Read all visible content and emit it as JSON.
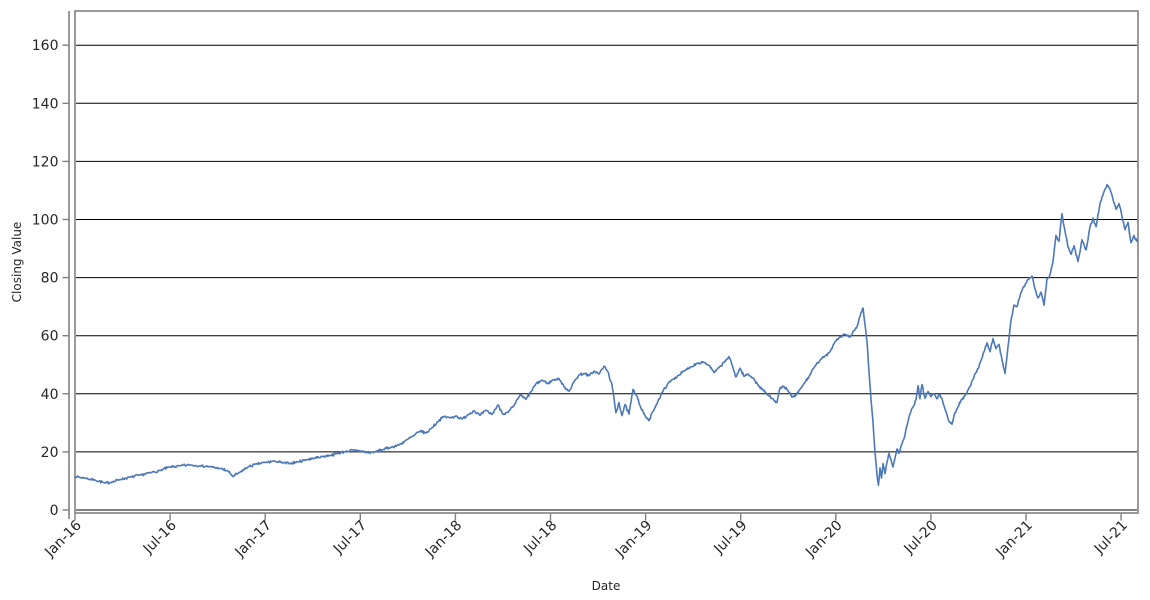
{
  "chart_data": {
    "type": "line",
    "title": "",
    "xlabel": "Date",
    "ylabel": "Closing Value",
    "x_axis": {
      "tick_labels": [
        "Jan-16",
        "Jul-16",
        "Jan-17",
        "Jul-17",
        "Jan-18",
        "Jul-18",
        "Jan-19",
        "Jul-19",
        "Jan-20",
        "Jul-20",
        "Jan-21",
        "Jul-21"
      ],
      "tick_months": [
        0,
        6,
        12,
        18,
        24,
        30,
        36,
        42,
        48,
        54,
        60,
        66
      ],
      "range_months": [
        0,
        67
      ]
    },
    "y_axis": {
      "tick_labels": [
        "0",
        "20",
        "40",
        "60",
        "80",
        "100",
        "120",
        "140",
        "160"
      ],
      "ticks": [
        0,
        20,
        40,
        60,
        80,
        100,
        120,
        140,
        160
      ],
      "range": [
        -1,
        172
      ]
    },
    "grid": {
      "horizontal": true,
      "vertical": false,
      "color": "#000000"
    },
    "legend": "none",
    "line": {
      "name": "Closing Value",
      "color": "#4c78b8",
      "width": 1.6
    },
    "frame_color": "#808080",
    "text_color": "#262626",
    "background": "#ffffff",
    "noise": {
      "seed": 7,
      "amp": 0.5,
      "step_months": 0.045
    },
    "series": [
      {
        "name": "Closing Value",
        "points": [
          [
            0,
            11.5
          ],
          [
            0.63,
            11
          ],
          [
            1.26,
            10.3
          ],
          [
            1.89,
            9.3
          ],
          [
            2.33,
            9.6
          ],
          [
            2.84,
            10.5
          ],
          [
            3.47,
            11.3
          ],
          [
            4.1,
            12
          ],
          [
            4.73,
            12.8
          ],
          [
            5.36,
            13.6
          ],
          [
            5.99,
            14.8
          ],
          [
            6.62,
            15.2
          ],
          [
            7.26,
            15.5
          ],
          [
            7.89,
            15.2
          ],
          [
            8.52,
            14.9
          ],
          [
            9.15,
            14.3
          ],
          [
            9.65,
            13.4
          ],
          [
            9.97,
            11.5
          ],
          [
            10.41,
            13
          ],
          [
            10.91,
            14.8
          ],
          [
            11.42,
            15.8
          ],
          [
            12.05,
            16.4
          ],
          [
            12.62,
            16.8
          ],
          [
            13.12,
            16.2
          ],
          [
            13.56,
            16
          ],
          [
            14.07,
            16.6
          ],
          [
            14.57,
            17.3
          ],
          [
            15.08,
            17.8
          ],
          [
            15.58,
            18.4
          ],
          [
            16.09,
            18.8
          ],
          [
            16.59,
            19.5
          ],
          [
            17.1,
            20.2
          ],
          [
            17.6,
            20.6
          ],
          [
            18.04,
            20.3
          ],
          [
            18.49,
            19.7
          ],
          [
            18.93,
            20
          ],
          [
            19.43,
            20.8
          ],
          [
            19.94,
            21.6
          ],
          [
            20.44,
            22.4
          ],
          [
            20.95,
            24.2
          ],
          [
            21.39,
            25.6
          ],
          [
            21.77,
            27.2
          ],
          [
            22.15,
            26.5
          ],
          [
            22.52,
            28.3
          ],
          [
            22.9,
            30.5
          ],
          [
            23.28,
            32.2
          ],
          [
            23.66,
            31.7
          ],
          [
            24.04,
            32.4
          ],
          [
            24.42,
            31.3
          ],
          [
            24.79,
            32.8
          ],
          [
            25.17,
            34.2
          ],
          [
            25.55,
            32.6
          ],
          [
            25.93,
            34.3
          ],
          [
            26.31,
            32.9
          ],
          [
            26.69,
            36.2
          ],
          [
            27,
            33
          ],
          [
            27.32,
            33.6
          ],
          [
            27.7,
            35.9
          ],
          [
            28.08,
            39.6
          ],
          [
            28.45,
            38.1
          ],
          [
            28.77,
            40.7
          ],
          [
            29.08,
            43.4
          ],
          [
            29.46,
            44.7
          ],
          [
            29.84,
            43.5
          ],
          [
            30.16,
            44.8
          ],
          [
            30.54,
            45.2
          ],
          [
            30.85,
            42.5
          ],
          [
            31.17,
            40.9
          ],
          [
            31.48,
            44.1
          ],
          [
            31.8,
            46.5
          ],
          [
            32.11,
            47
          ],
          [
            32.43,
            46.2
          ],
          [
            32.74,
            47.8
          ],
          [
            33.06,
            46.8
          ],
          [
            33.38,
            49.5
          ],
          [
            33.63,
            47.5
          ],
          [
            33.88,
            43
          ],
          [
            34.13,
            33.5
          ],
          [
            34.32,
            37
          ],
          [
            34.51,
            32.5
          ],
          [
            34.7,
            36.3
          ],
          [
            34.95,
            33
          ],
          [
            35.21,
            41.5
          ],
          [
            35.46,
            39.2
          ],
          [
            35.71,
            35
          ],
          [
            35.96,
            32.5
          ],
          [
            36.21,
            30.7
          ],
          [
            36.47,
            34
          ],
          [
            36.78,
            37.5
          ],
          [
            37.1,
            41
          ],
          [
            37.41,
            43.5
          ],
          [
            37.73,
            45
          ],
          [
            38.11,
            46.5
          ],
          [
            38.49,
            48
          ],
          [
            38.86,
            49.3
          ],
          [
            39.24,
            50.5
          ],
          [
            39.62,
            51
          ],
          [
            40,
            49.8
          ],
          [
            40.32,
            47.3
          ],
          [
            40.63,
            49
          ],
          [
            40.95,
            50.8
          ],
          [
            41.26,
            52.8
          ],
          [
            41.51,
            49
          ],
          [
            41.7,
            45.8
          ],
          [
            41.96,
            48.8
          ],
          [
            42.21,
            46
          ],
          [
            42.46,
            46.8
          ],
          [
            42.78,
            45.5
          ],
          [
            43.09,
            43
          ],
          [
            43.41,
            41.3
          ],
          [
            43.72,
            39.5
          ],
          [
            44.04,
            38.3
          ],
          [
            44.29,
            37
          ],
          [
            44.48,
            42
          ],
          [
            44.73,
            42.5
          ],
          [
            44.98,
            41
          ],
          [
            45.24,
            38.8
          ],
          [
            45.49,
            39.5
          ],
          [
            45.74,
            41.5
          ],
          [
            46.06,
            44
          ],
          [
            46.37,
            46.5
          ],
          [
            46.69,
            49.5
          ],
          [
            47,
            51.5
          ],
          [
            47.32,
            53
          ],
          [
            47.63,
            54.5
          ],
          [
            47.95,
            58
          ],
          [
            48.26,
            59.5
          ],
          [
            48.58,
            60.5
          ],
          [
            48.9,
            59.5
          ],
          [
            49.21,
            62
          ],
          [
            49.4,
            64
          ],
          [
            49.59,
            68
          ],
          [
            49.72,
            69.5
          ],
          [
            49.84,
            64
          ],
          [
            49.97,
            58
          ],
          [
            50.09,
            48
          ],
          [
            50.22,
            38
          ],
          [
            50.35,
            30
          ],
          [
            50.47,
            20
          ],
          [
            50.6,
            12
          ],
          [
            50.69,
            8.5
          ],
          [
            50.79,
            14.5
          ],
          [
            50.88,
            11
          ],
          [
            50.98,
            16
          ],
          [
            51.1,
            12.5
          ],
          [
            51.23,
            16.5
          ],
          [
            51.36,
            19.5
          ],
          [
            51.48,
            17.5
          ],
          [
            51.61,
            14.8
          ],
          [
            51.74,
            18
          ],
          [
            51.86,
            21
          ],
          [
            51.99,
            19.5
          ],
          [
            52.11,
            22
          ],
          [
            52.3,
            24.5
          ],
          [
            52.49,
            29
          ],
          [
            52.68,
            33
          ],
          [
            52.87,
            35.5
          ],
          [
            53.06,
            38
          ],
          [
            53.19,
            42.8
          ],
          [
            53.31,
            38.3
          ],
          [
            53.44,
            43.2
          ],
          [
            53.63,
            38.5
          ],
          [
            53.82,
            40.8
          ],
          [
            54.01,
            39
          ],
          [
            54.2,
            40
          ],
          [
            54.38,
            38.3
          ],
          [
            54.57,
            39.8
          ],
          [
            54.76,
            37
          ],
          [
            54.95,
            34
          ],
          [
            55.14,
            30.5
          ],
          [
            55.33,
            29.5
          ],
          [
            55.52,
            33.5
          ],
          [
            55.71,
            35.5
          ],
          [
            55.9,
            37.8
          ],
          [
            56.15,
            39.3
          ],
          [
            56.4,
            42
          ],
          [
            56.66,
            45
          ],
          [
            56.91,
            48
          ],
          [
            57.16,
            51.5
          ],
          [
            57.35,
            54.5
          ],
          [
            57.54,
            57.5
          ],
          [
            57.73,
            54.5
          ],
          [
            57.92,
            59
          ],
          [
            58.11,
            55.5
          ],
          [
            58.3,
            57
          ],
          [
            58.49,
            51.5
          ],
          [
            58.68,
            47
          ],
          [
            58.86,
            56
          ],
          [
            59.05,
            65
          ],
          [
            59.24,
            70.5
          ],
          [
            59.43,
            70
          ],
          [
            59.62,
            73.5
          ],
          [
            59.81,
            76.5
          ],
          [
            60,
            78
          ],
          [
            60.19,
            79.5
          ],
          [
            60.38,
            80.5
          ],
          [
            60.57,
            76
          ],
          [
            60.76,
            73
          ],
          [
            60.95,
            75
          ],
          [
            61.14,
            70.5
          ],
          [
            61.32,
            79.5
          ],
          [
            61.51,
            81
          ],
          [
            61.7,
            85.5
          ],
          [
            61.89,
            94.5
          ],
          [
            62.08,
            92.5
          ],
          [
            62.27,
            102
          ],
          [
            62.46,
            96
          ],
          [
            62.65,
            90.5
          ],
          [
            62.84,
            88
          ],
          [
            63.03,
            91
          ],
          [
            63.28,
            85.5
          ],
          [
            63.53,
            93
          ],
          [
            63.79,
            89.5
          ],
          [
            64.04,
            97.5
          ],
          [
            64.23,
            100.5
          ],
          [
            64.42,
            97.5
          ],
          [
            64.67,
            105.5
          ],
          [
            64.92,
            109.5
          ],
          [
            65.11,
            112
          ],
          [
            65.3,
            110.5
          ],
          [
            65.49,
            107
          ],
          [
            65.68,
            103.5
          ],
          [
            65.87,
            105.5
          ],
          [
            66.06,
            101
          ],
          [
            66.25,
            96.5
          ],
          [
            66.44,
            99
          ],
          [
            66.62,
            92
          ],
          [
            66.81,
            94.5
          ],
          [
            67,
            92.5
          ]
        ]
      }
    ]
  }
}
